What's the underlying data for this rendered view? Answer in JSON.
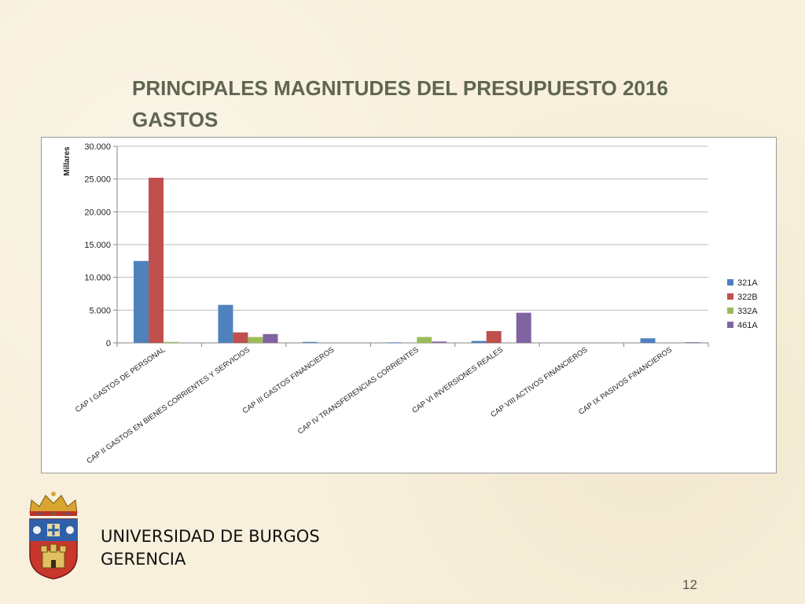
{
  "slide": {
    "title_line1": "PRINCIPALES MAGNITUDES DEL PRESUPUESTO 2016",
    "title_line2": "GASTOS",
    "university_line1": "UNIVERSIDAD DE BURGOS",
    "university_line2": "GERENCIA",
    "page_number": "12"
  },
  "colors": {
    "title": "#5f6651",
    "321A": "#4f81bd",
    "322B": "#c0504d",
    "332A": "#9bbb59",
    "461A": "#8064a2"
  },
  "chart_data": {
    "type": "bar",
    "ylabel": "Millares",
    "ylim": [
      0,
      30000
    ],
    "yticks": [
      "0",
      "5.000",
      "10.000",
      "15.000",
      "20.000",
      "25.000",
      "30.000"
    ],
    "categories": [
      "CAP I GASTOS DE PERSONAL",
      "CAP II GASTOS EN BIENES CORRIENTES Y SERVICIOS",
      "CAP III GASTOS FINANCIEROS",
      "CAP IV TRANSFERENCIAS CORRIENTES",
      "CAP VI INVERSIONES REALES",
      "CAP VIII ACTIVOS FINANCIEROS",
      "CAP IX PASIVOS FINANCIEROS"
    ],
    "series": [
      {
        "name": "321A",
        "values": [
          12500,
          5800,
          150,
          80,
          300,
          0,
          700
        ]
      },
      {
        "name": "322B",
        "values": [
          25200,
          1600,
          0,
          0,
          1800,
          0,
          0
        ]
      },
      {
        "name": "332A",
        "values": [
          150,
          900,
          0,
          900,
          0,
          0,
          0
        ]
      },
      {
        "name": "461A",
        "values": [
          0,
          1350,
          0,
          200,
          4600,
          0,
          100
        ]
      }
    ],
    "grid": true,
    "legend": "right"
  }
}
